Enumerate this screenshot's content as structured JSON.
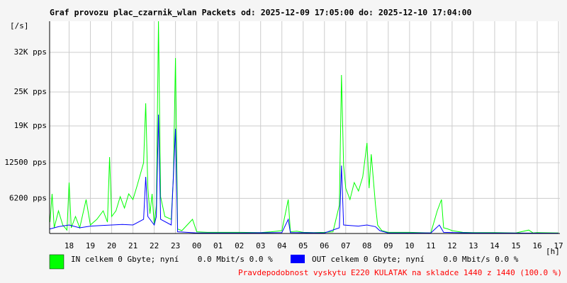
{
  "chart_data": {
    "type": "line",
    "title": "Graf provozu plac_czarnik_wlan Packets od: 2025-12-09 17:05:00 do: 2025-12-10 17:04:00",
    "y_unit": "[/s]",
    "x_unit": "[h]",
    "note": "Pravdepodobnost vyskytu E220 KULATAK na skladce 1440 z 1440 (100.0 %)",
    "xlim": [
      17.083,
      41.067
    ],
    "xticks": [
      18,
      19,
      20,
      21,
      22,
      23,
      {
        "value": 24,
        "label": "00"
      },
      {
        "value": 25,
        "label": "01"
      },
      {
        "value": 26,
        "label": "02"
      },
      {
        "value": 27,
        "label": "03"
      },
      {
        "value": 28,
        "label": "04"
      },
      {
        "value": 29,
        "label": "05"
      },
      {
        "value": 30,
        "label": "06"
      },
      {
        "value": 31,
        "label": "07"
      },
      {
        "value": 32,
        "label": "08"
      },
      {
        "value": 33,
        "label": "09"
      },
      {
        "value": 34,
        "label": "10"
      },
      {
        "value": 35,
        "label": "11"
      },
      {
        "value": 36,
        "label": "12"
      },
      {
        "value": 37,
        "label": "13"
      },
      {
        "value": 38,
        "label": "14"
      },
      {
        "value": 39,
        "label": "15"
      },
      {
        "value": 40,
        "label": "16"
      },
      {
        "value": 41,
        "label": "17"
      }
    ],
    "ylim": [
      0,
      37500
    ],
    "yticks": [
      {
        "value": 6200,
        "label": "6200 pps"
      },
      {
        "value": 12500,
        "label": "12500 pps"
      },
      {
        "value": 19000,
        "label": "19K pps"
      },
      {
        "value": 25000,
        "label": "25K pps"
      },
      {
        "value": 32000,
        "label": "32K pps"
      }
    ],
    "grid": true,
    "series": [
      {
        "name": "IN celkem 0 Gbyte; nyní    0.0 Mbit/s 0.0 %",
        "color": "#00ff00",
        "x": [
          17.1,
          17.2,
          17.3,
          17.5,
          17.7,
          17.9,
          18.0,
          18.1,
          18.3,
          18.5,
          18.8,
          19.0,
          19.3,
          19.6,
          19.8,
          19.9,
          20.0,
          20.2,
          20.4,
          20.6,
          20.8,
          21.0,
          21.2,
          21.5,
          21.6,
          21.7,
          21.8,
          21.9,
          22.0,
          22.1,
          22.2,
          22.3,
          22.5,
          22.8,
          22.9,
          23.0,
          23.1,
          23.3,
          23.8,
          24.0,
          24.5,
          25.0,
          26.0,
          27.0,
          27.5,
          28.0,
          28.3,
          28.4,
          28.7,
          29.0,
          29.5,
          30.0,
          30.4,
          30.7,
          30.8,
          30.9,
          31.0,
          31.2,
          31.4,
          31.6,
          31.8,
          32.0,
          32.1,
          32.2,
          32.4,
          32.5,
          32.7,
          33.0,
          34.0,
          35.0,
          35.3,
          35.5,
          35.6,
          35.8,
          36.0,
          36.5,
          37.0,
          38.0,
          39.0,
          39.6,
          39.8,
          40.0,
          41.0
        ],
        "values": [
          2000,
          7000,
          1000,
          4000,
          1500,
          600,
          9000,
          1000,
          3000,
          1000,
          6000,
          1500,
          2500,
          4000,
          2000,
          13500,
          3000,
          4000,
          6500,
          4500,
          7000,
          6000,
          8500,
          12500,
          23000,
          8000,
          3500,
          7000,
          1500,
          5000,
          37500,
          6500,
          3000,
          2500,
          10000,
          31000,
          800,
          500,
          2500,
          300,
          200,
          200,
          200,
          150,
          300,
          500,
          6000,
          300,
          400,
          200,
          150,
          200,
          300,
          5000,
          28000,
          12000,
          8000,
          6000,
          9000,
          7500,
          10000,
          16000,
          8000,
          14000,
          5000,
          1500,
          500,
          200,
          200,
          100,
          4000,
          6000,
          1000,
          800,
          500,
          200,
          150,
          150,
          100,
          600,
          100,
          150,
          100
        ]
      },
      {
        "name": "OUT celkem 0 Gbyte; nyní    0.0 Mbit/s 0.0 %",
        "color": "#0000ff",
        "x": [
          17.1,
          17.5,
          18.0,
          18.5,
          19.0,
          19.5,
          20.0,
          20.5,
          21.0,
          21.5,
          21.6,
          21.7,
          22.0,
          22.1,
          22.2,
          22.3,
          22.8,
          23.0,
          23.1,
          24.0,
          26.0,
          28.0,
          28.3,
          28.4,
          30.0,
          30.7,
          30.8,
          30.9,
          31.2,
          31.6,
          32.0,
          32.4,
          32.6,
          33.0,
          35.0,
          35.4,
          35.6,
          37.0,
          41.0
        ],
        "values": [
          800,
          1200,
          1500,
          1000,
          1300,
          1400,
          1500,
          1600,
          1500,
          2500,
          10000,
          3000,
          1500,
          3000,
          21000,
          2500,
          1500,
          18500,
          300,
          100,
          100,
          150,
          2500,
          150,
          100,
          1000,
          12000,
          1500,
          1400,
          1300,
          1500,
          1200,
          500,
          100,
          100,
          1500,
          200,
          100,
          50
        ]
      }
    ]
  }
}
